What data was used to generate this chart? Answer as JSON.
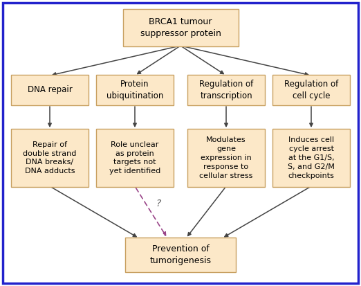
{
  "background_color": "#ffffff",
  "border_color": "#2222cc",
  "box_fill": "#fce8c8",
  "box_edge": "#c8a060",
  "arrow_color": "#444444",
  "dashed_arrow_color": "#994488",
  "question_color": "#666666",
  "text_color": "#000000",
  "title": "BRCA1 tumour\nsuppressor protein",
  "level2": [
    "DNA repair",
    "Protein\nubiquitination",
    "Regulation of\ntranscription",
    "Regulation of\ncell cycle"
  ],
  "level3": [
    "Repair of\ndouble strand\nDNA breaks/\nDNA adducts",
    "Role unclear\nas protein\ntargets not\nyet identified",
    "Modulates\ngene\nexpression in\nresponse to\ncellular stress",
    "Induces cell\ncycle arrest\nat the G1/S,\nS, and G2/M\ncheckpoints"
  ],
  "bottom": "Prevention of\ntumorigenesis",
  "fig_width": 5.22,
  "fig_height": 4.13,
  "dpi": 100
}
